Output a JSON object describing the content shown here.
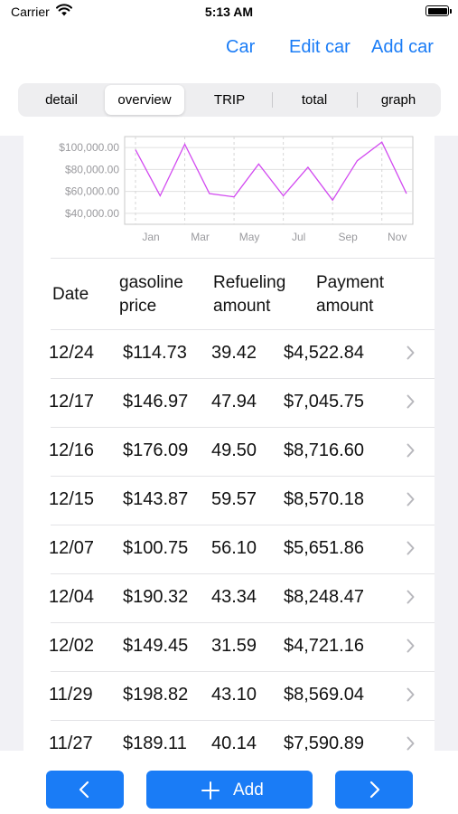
{
  "status": {
    "carrier": "Carrier",
    "time": "5:13 AM"
  },
  "nav": {
    "car": "Car",
    "edit_car": "Edit car",
    "add_car": "Add car"
  },
  "segments": [
    {
      "label": "detail",
      "active": false
    },
    {
      "label": "overview",
      "active": true
    },
    {
      "label": "TRIP",
      "active": false
    },
    {
      "label": "total",
      "active": false
    },
    {
      "label": "graph",
      "active": false
    }
  ],
  "chart_data": {
    "type": "line",
    "x_ticks": [
      "Jan",
      "Mar",
      "May",
      "Jul",
      "Sep",
      "Nov"
    ],
    "y_ticks": [
      "$100,000.00",
      "$80,000.00",
      "$60,000.00",
      "$40,000.00"
    ],
    "y_tick_values": [
      100000,
      80000,
      60000,
      40000
    ],
    "ylim": [
      30000,
      110000
    ],
    "x": [
      "Jan",
      "Feb",
      "Mar",
      "Apr",
      "May",
      "Jun",
      "Jul",
      "Aug",
      "Sep",
      "Oct",
      "Nov",
      "Dec"
    ],
    "series": [
      {
        "values": [
          98000,
          56000,
          103000,
          58000,
          55000,
          85000,
          56000,
          82000,
          52000,
          88000,
          105000,
          58000
        ]
      }
    ],
    "line_color": "#d24af0",
    "grid": true
  },
  "table": {
    "headers": {
      "date": "Date",
      "gasoline_1": "gasoline",
      "gasoline_2": "price",
      "refuel_1": "Refueling",
      "refuel_2": "amount",
      "payment_1": "Payment",
      "payment_2": "amount"
    },
    "rows": [
      {
        "date": "12/24",
        "price": "$114.73",
        "amount": "39.42",
        "payment": "$4,522.84"
      },
      {
        "date": "12/17",
        "price": "$146.97",
        "amount": "47.94",
        "payment": "$7,045.75"
      },
      {
        "date": "12/16",
        "price": "$176.09",
        "amount": "49.50",
        "payment": "$8,716.60"
      },
      {
        "date": "12/15",
        "price": "$143.87",
        "amount": "59.57",
        "payment": "$8,570.18"
      },
      {
        "date": "12/07",
        "price": "$100.75",
        "amount": "56.10",
        "payment": "$5,651.86"
      },
      {
        "date": "12/04",
        "price": "$190.32",
        "amount": "43.34",
        "payment": "$8,248.47"
      },
      {
        "date": "12/02",
        "price": "$149.45",
        "amount": "31.59",
        "payment": "$4,721.16"
      },
      {
        "date": "11/29",
        "price": "$198.82",
        "amount": "43.10",
        "payment": "$8,569.04"
      },
      {
        "date": "11/27",
        "price": "$189.11",
        "amount": "40.14",
        "payment": "$7,590.89"
      }
    ]
  },
  "toolbar": {
    "add_label": "Add"
  },
  "colors": {
    "accent": "#1a7cf6",
    "segment_bg": "#eeeef0"
  }
}
